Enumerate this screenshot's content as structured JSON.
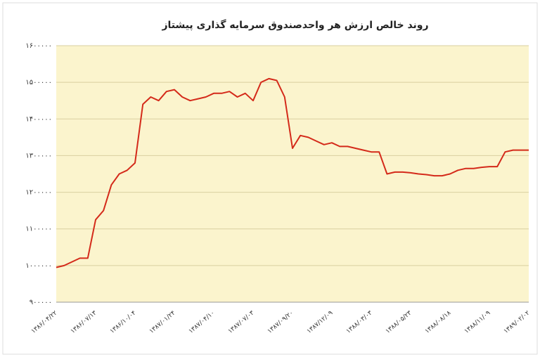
{
  "chart_data": {
    "type": "line",
    "title": "روند خالص ارزش هر واحدصندوق سرمایه گذاری پیشتاز",
    "categories": [
      "۱۳۸۶/۰۴/۲۲",
      null,
      null,
      null,
      null,
      "۱۳۸۶/۰۷/۱۳",
      null,
      null,
      null,
      null,
      "۱۳۸۶/۱۰/۰۴",
      null,
      null,
      null,
      null,
      "۱۳۸۷/۰۱/۲۴",
      null,
      null,
      null,
      null,
      "۱۳۸۷/۰۴/۱۰",
      null,
      null,
      null,
      null,
      "۱۳۸۷/۰۷/۰۳",
      null,
      null,
      null,
      null,
      "۱۳۸۷/۰۹/۲۰",
      null,
      null,
      null,
      null,
      "۱۳۸۷/۱۲/۰۹",
      null,
      null,
      null,
      null,
      "۱۳۸۸/۰۳/۰۳",
      null,
      null,
      null,
      null,
      "۱۳۸۸/۰۵/۲۳",
      null,
      null,
      null,
      null,
      "۱۳۸۸/۰۸/۱۸",
      null,
      null,
      null,
      null,
      "۱۳۸۸/۱۱/۰۹",
      null,
      null,
      null,
      null,
      "۱۳۸۹/۰۲/۰۲"
    ],
    "values": [
      995000,
      1000000,
      1010000,
      1020000,
      1020000,
      1125000,
      1150000,
      1220000,
      1250000,
      1260000,
      1280000,
      1440000,
      1460000,
      1450000,
      1475000,
      1480000,
      1460000,
      1450000,
      1455000,
      1460000,
      1470000,
      1470000,
      1475000,
      1460000,
      1470000,
      1450000,
      1500000,
      1510000,
      1505000,
      1460000,
      1320000,
      1355000,
      1350000,
      1340000,
      1330000,
      1335000,
      1325000,
      1325000,
      1320000,
      1315000,
      1310000,
      1310000,
      1250000,
      1255000,
      1255000,
      1253000,
      1250000,
      1248000,
      1245000,
      1245000,
      1250000,
      1260000,
      1265000,
      1265000,
      1268000,
      1270000,
      1270000,
      1310000,
      1315000,
      1315000,
      1315000
    ],
    "color": "#d42a1a",
    "ylim": [
      900000,
      1600000
    ],
    "yticks": [
      {
        "value": 900000,
        "label": "۹۰۰۰۰۰"
      },
      {
        "value": 1000000,
        "label": "۱۰۰۰۰۰۰"
      },
      {
        "value": 1100000,
        "label": "۱۱۰۰۰۰۰"
      },
      {
        "value": 1200000,
        "label": "۱۲۰۰۰۰۰"
      },
      {
        "value": 1300000,
        "label": "۱۳۰۰۰۰۰"
      },
      {
        "value": 1400000,
        "label": "۱۴۰۰۰۰۰"
      },
      {
        "value": 1500000,
        "label": "۱۵۰۰۰۰۰"
      },
      {
        "value": 1600000,
        "label": "۱۶۰۰۰۰۰"
      }
    ],
    "grid": true
  }
}
